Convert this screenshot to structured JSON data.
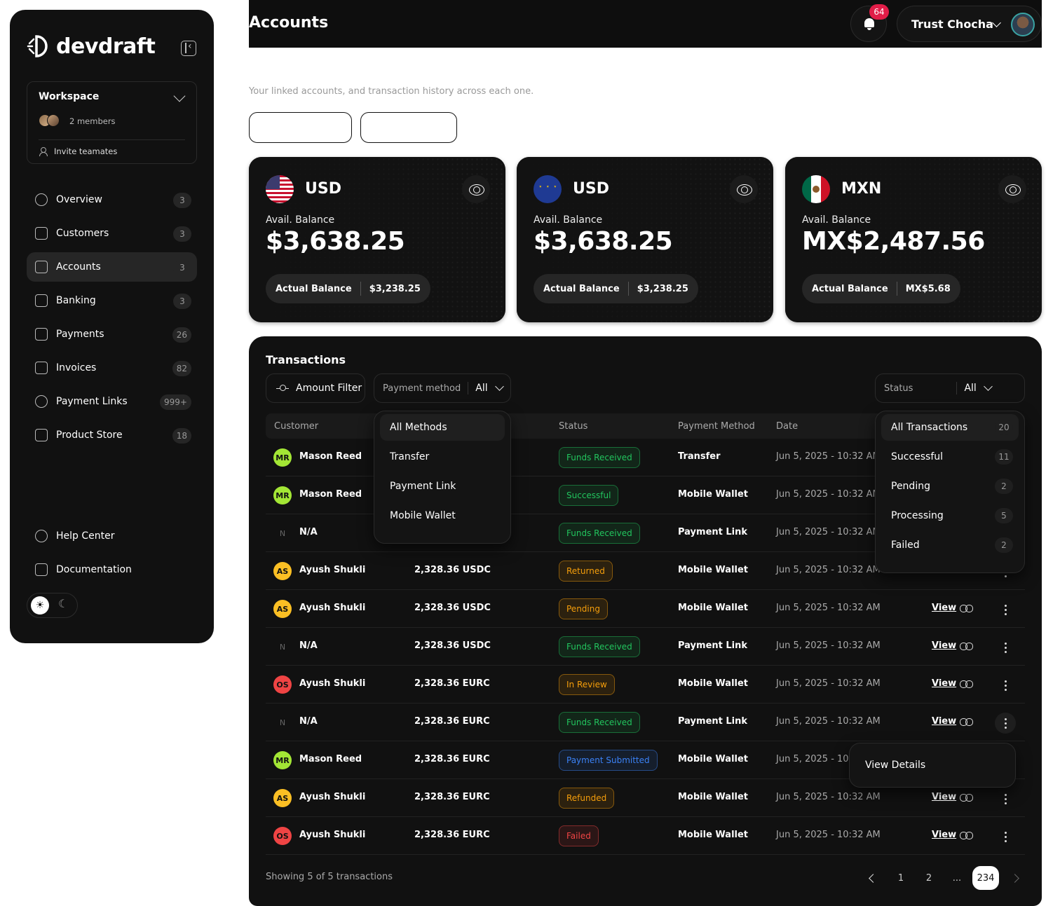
{
  "app": {
    "brand": "devdraft",
    "page_title": "Accounts",
    "subtitle": "Your linked accounts, and transaction history across each one."
  },
  "header": {
    "notification_count": "64",
    "user_name": "Trust Chocha"
  },
  "workspace": {
    "title": "Workspace",
    "members": "2 members",
    "invite": "Invite teamates"
  },
  "sidebar": {
    "items": [
      {
        "label": "Overview",
        "badge": "3",
        "icon": "chart-icon"
      },
      {
        "label": "Customers",
        "badge": "3",
        "icon": "id-card-icon"
      },
      {
        "label": "Accounts",
        "badge": "3",
        "icon": "wallet-icon",
        "active": true
      },
      {
        "label": "Banking",
        "badge": "3",
        "icon": "bank-icon"
      },
      {
        "label": "Payments",
        "badge": "26",
        "icon": "card-icon"
      },
      {
        "label": "Invoices",
        "badge": "82",
        "icon": "invoice-icon"
      },
      {
        "label": "Payment Links",
        "badge": "999+",
        "icon": "link-circle-icon"
      },
      {
        "label": "Product Store",
        "badge": "18",
        "icon": "store-icon"
      }
    ],
    "help": "Help Center",
    "docs": "Documentation"
  },
  "cards": [
    {
      "currency": "USD",
      "flag": "us-flag",
      "avail_label": "Avail. Balance",
      "avail_value": "$3,638.25",
      "actual_label": "Actual Balance",
      "actual_value": "$3,238.25"
    },
    {
      "currency": "USD",
      "flag": "eu-flag",
      "avail_label": "Avail. Balance",
      "avail_value": "$3,638.25",
      "actual_label": "Actual Balance",
      "actual_value": "$3,238.25"
    },
    {
      "currency": "MXN",
      "flag": "mx-flag",
      "avail_label": "Avail. Balance",
      "avail_value": "MX$2,487.56",
      "actual_label": "Actual Balance",
      "actual_value": "MX$5.68"
    }
  ],
  "transactions": {
    "title": "Transactions",
    "amount_filter": "Amount Filter",
    "payment_method_label": "Payment method",
    "payment_method_value": "All",
    "status_label": "Status",
    "status_value": "All",
    "columns": [
      "Customer",
      "Status",
      "Payment Method",
      "Date"
    ],
    "view_label": "View",
    "rows": [
      {
        "initials": "MR",
        "avatar_color": "#a3e635",
        "name": "Mason Reed",
        "amount": "",
        "status": "Funds Received",
        "status_color": "#22c55e",
        "method": "Transfer",
        "date": "Jun 5, 2025 - 10:32 AM"
      },
      {
        "initials": "MR",
        "avatar_color": "#a3e635",
        "name": "Mason Reed",
        "amount": "",
        "status": "Successful",
        "status_color": "#22c55e",
        "method": "Mobile Wallet",
        "date": "Jun 5, 2025 - 10:32 AM"
      },
      {
        "initials": "N",
        "avatar_color": "",
        "name": "N/A",
        "amount": "",
        "status": "Funds Received",
        "status_color": "#22c55e",
        "method": "Payment Link",
        "date": "Jun 5, 2025 - 10:32 AM"
      },
      {
        "initials": "AS",
        "avatar_color": "#fbbf24",
        "name": "Ayush Shukli",
        "amount": "2,328.36 USDC",
        "status": "Returned",
        "status_color": "#f59e0b",
        "method": "Mobile Wallet",
        "date": "Jun 5, 2025 - 10:32 AM"
      },
      {
        "initials": "AS",
        "avatar_color": "#fbbf24",
        "name": "Ayush Shukli",
        "amount": "2,328.36 USDC",
        "status": "Pending",
        "status_color": "#f59e0b",
        "method": "Mobile Wallet",
        "date": "Jun 5, 2025 - 10:32 AM"
      },
      {
        "initials": "N",
        "avatar_color": "",
        "name": "N/A",
        "amount": "2,328.36 USDC",
        "status": "Funds Received",
        "status_color": "#22c55e",
        "method": "Payment Link",
        "date": "Jun 5, 2025 - 10:32 AM"
      },
      {
        "initials": "OS",
        "avatar_color": "#ef4444",
        "name": "Ayush Shukli",
        "amount": "2,328.36 EURC",
        "status": "In Review",
        "status_color": "#f59e0b",
        "method": "Mobile Wallet",
        "date": "Jun 5, 2025 - 10:32 AM"
      },
      {
        "initials": "N",
        "avatar_color": "",
        "name": "N/A",
        "amount": "2,328.36 EURC",
        "status": "Funds Received",
        "status_color": "#22c55e",
        "method": "Payment Link",
        "date": "Jun 5, 2025 - 10:32 AM"
      },
      {
        "initials": "MR",
        "avatar_color": "#a3e635",
        "name": "Mason Reed",
        "amount": "2,328.36 EURC",
        "status": "Payment Submitted",
        "status_color": "#3b82f6",
        "method": "Mobile Wallet",
        "date": "Jun 5, 2025 - 10:32 AM"
      },
      {
        "initials": "AS",
        "avatar_color": "#fbbf24",
        "name": "Ayush Shukli",
        "amount": "2,328.36 EURC",
        "status": "Refunded",
        "status_color": "#f59e0b",
        "method": "Mobile Wallet",
        "date": "Jun 5, 2025 - 10:32 AM"
      },
      {
        "initials": "OS",
        "avatar_color": "#ef4444",
        "name": "Ayush Shukli",
        "amount": "2,328.36 EURC",
        "status": "Failed",
        "status_color": "#ef4444",
        "method": "Mobile Wallet",
        "date": "Jun 5, 2025 - 10:32 AM"
      }
    ],
    "method_dropdown": [
      "All Methods",
      "Transfer",
      "Payment Link",
      "Mobile Wallet"
    ],
    "status_dropdown": [
      {
        "label": "All Transactions",
        "count": "20"
      },
      {
        "label": "Successful",
        "count": "11"
      },
      {
        "label": "Pending",
        "count": "2"
      },
      {
        "label": "Processing",
        "count": "5"
      },
      {
        "label": "Failed",
        "count": "2"
      }
    ],
    "row_menu_item": "View Details",
    "showing": "Showing 5 of 5 transactions",
    "pages": [
      "1",
      "2",
      "...",
      "234"
    ]
  }
}
